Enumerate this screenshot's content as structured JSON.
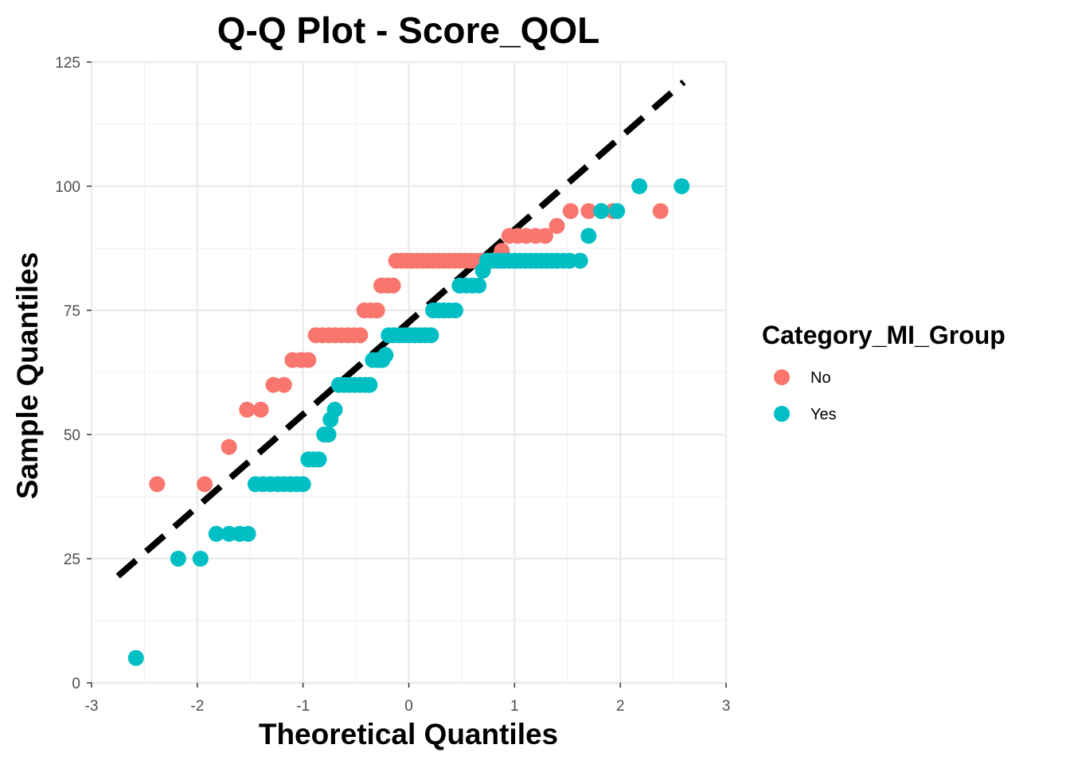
{
  "chart_data": {
    "type": "scatter",
    "title": "Q-Q Plot -  Score_QOL",
    "xlabel": "Theoretical Quantiles",
    "ylabel": "Sample Quantiles",
    "xlim": [
      -3,
      3
    ],
    "ylim": [
      0,
      125
    ],
    "x_ticks": [
      -3,
      -2,
      -1,
      0,
      1,
      2,
      3
    ],
    "y_ticks": [
      0,
      25,
      50,
      75,
      100,
      125
    ],
    "grid": true,
    "legend": {
      "title": "Category_MI_Group",
      "placement": "right"
    },
    "reference_line": {
      "style": "dashed",
      "color": "#000000",
      "x": [
        -2.75,
        2.6
      ],
      "y": [
        21.5,
        121
      ]
    },
    "series": [
      {
        "name": "No",
        "color": "#F8766D",
        "points": [
          [
            -2.38,
            40
          ],
          [
            -1.93,
            40
          ],
          [
            -1.7,
            47.5
          ],
          [
            -1.53,
            55
          ],
          [
            -1.4,
            55
          ],
          [
            -1.28,
            60
          ],
          [
            -1.18,
            60
          ],
          [
            -1.1,
            65
          ],
          [
            -1.02,
            65
          ],
          [
            -0.95,
            65
          ],
          [
            -0.88,
            70
          ],
          [
            -0.82,
            70
          ],
          [
            -0.76,
            70
          ],
          [
            -0.7,
            70
          ],
          [
            -0.64,
            70
          ],
          [
            -0.58,
            70
          ],
          [
            -0.52,
            70
          ],
          [
            -0.46,
            70
          ],
          [
            -0.42,
            75
          ],
          [
            -0.36,
            75
          ],
          [
            -0.3,
            75
          ],
          [
            -0.26,
            80
          ],
          [
            -0.2,
            80
          ],
          [
            -0.15,
            80
          ],
          [
            -0.12,
            85
          ],
          [
            -0.07,
            85
          ],
          [
            -0.02,
            85
          ],
          [
            0.03,
            85
          ],
          [
            0.08,
            85
          ],
          [
            0.13,
            85
          ],
          [
            0.18,
            85
          ],
          [
            0.23,
            85
          ],
          [
            0.28,
            85
          ],
          [
            0.33,
            85
          ],
          [
            0.38,
            85
          ],
          [
            0.43,
            85
          ],
          [
            0.48,
            85
          ],
          [
            0.53,
            85
          ],
          [
            0.58,
            85
          ],
          [
            0.63,
            85
          ],
          [
            0.68,
            85
          ],
          [
            0.73,
            85
          ],
          [
            0.78,
            85
          ],
          [
            0.83,
            85
          ],
          [
            0.88,
            87
          ],
          [
            0.95,
            90
          ],
          [
            1.03,
            90
          ],
          [
            1.11,
            90
          ],
          [
            1.2,
            90
          ],
          [
            1.29,
            90
          ],
          [
            1.4,
            92
          ],
          [
            1.53,
            95
          ],
          [
            1.7,
            95
          ],
          [
            1.93,
            95
          ],
          [
            2.38,
            95
          ]
        ]
      },
      {
        "name": "Yes",
        "color": "#00BFC4",
        "points": [
          [
            -2.58,
            5
          ],
          [
            -2.18,
            25
          ],
          [
            -1.97,
            25
          ],
          [
            -1.82,
            30
          ],
          [
            -1.7,
            30
          ],
          [
            -1.6,
            30
          ],
          [
            -1.52,
            30
          ],
          [
            -1.45,
            40
          ],
          [
            -1.38,
            40
          ],
          [
            -1.31,
            40
          ],
          [
            -1.24,
            40
          ],
          [
            -1.18,
            40
          ],
          [
            -1.12,
            40
          ],
          [
            -1.06,
            40
          ],
          [
            -1.0,
            40
          ],
          [
            -0.95,
            45
          ],
          [
            -0.9,
            45
          ],
          [
            -0.85,
            45
          ],
          [
            -0.8,
            50
          ],
          [
            -0.76,
            50
          ],
          [
            -0.74,
            53
          ],
          [
            -0.7,
            55
          ],
          [
            -0.66,
            60
          ],
          [
            -0.61,
            60
          ],
          [
            -0.56,
            60
          ],
          [
            -0.51,
            60
          ],
          [
            -0.46,
            60
          ],
          [
            -0.41,
            60
          ],
          [
            -0.37,
            60
          ],
          [
            -0.34,
            65
          ],
          [
            -0.29,
            65
          ],
          [
            -0.25,
            65
          ],
          [
            -0.22,
            66
          ],
          [
            -0.19,
            70
          ],
          [
            -0.14,
            70
          ],
          [
            -0.09,
            70
          ],
          [
            -0.04,
            70
          ],
          [
            0.01,
            70
          ],
          [
            0.06,
            70
          ],
          [
            0.11,
            70
          ],
          [
            0.16,
            70
          ],
          [
            0.21,
            70
          ],
          [
            0.23,
            75
          ],
          [
            0.28,
            75
          ],
          [
            0.33,
            75
          ],
          [
            0.38,
            75
          ],
          [
            0.44,
            75
          ],
          [
            0.48,
            80
          ],
          [
            0.54,
            80
          ],
          [
            0.6,
            80
          ],
          [
            0.66,
            80
          ],
          [
            0.7,
            83
          ],
          [
            0.74,
            85
          ],
          [
            0.79,
            85
          ],
          [
            0.85,
            85
          ],
          [
            0.9,
            85
          ],
          [
            0.95,
            85
          ],
          [
            1.0,
            85
          ],
          [
            1.05,
            85
          ],
          [
            1.1,
            85
          ],
          [
            1.15,
            85
          ],
          [
            1.2,
            85
          ],
          [
            1.25,
            85
          ],
          [
            1.3,
            85
          ],
          [
            1.35,
            85
          ],
          [
            1.4,
            85
          ],
          [
            1.46,
            85
          ],
          [
            1.52,
            85
          ],
          [
            1.62,
            85
          ],
          [
            1.7,
            90
          ],
          [
            1.82,
            95
          ],
          [
            1.97,
            95
          ],
          [
            2.18,
            100
          ],
          [
            2.58,
            100
          ]
        ]
      }
    ]
  }
}
